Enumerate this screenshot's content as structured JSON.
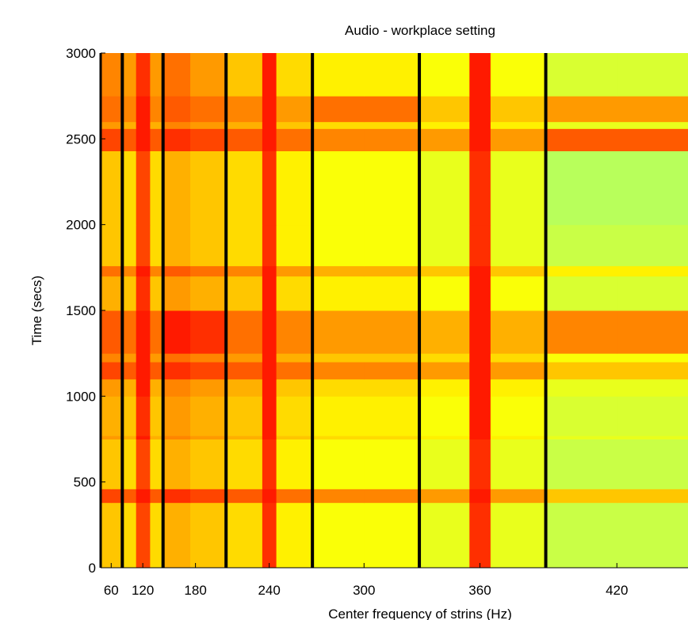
{
  "chart_data": {
    "type": "heatmap",
    "title": "Audio - workplace setting",
    "xlabel": "Center frequency of strins (Hz)",
    "ylabel": "Time (secs)",
    "xscale": "square",
    "xlim": [
      0,
      448
    ],
    "xticks": [
      60,
      120,
      180,
      240,
      300,
      360,
      420
    ],
    "ylim": [
      0,
      3000
    ],
    "yticks": [
      0,
      500,
      1000,
      1500,
      2000,
      2500,
      3000
    ],
    "xbins": [
      0,
      60,
      86,
      110,
      130,
      146,
      175,
      207,
      235,
      245,
      269,
      300,
      330,
      355,
      365,
      390,
      420,
      448
    ],
    "ybins": [
      0,
      380,
      460,
      750,
      770,
      1000,
      1100,
      1200,
      1250,
      1500,
      1700,
      1760,
      2000,
      2430,
      2560,
      2600,
      2750,
      3000
    ],
    "z": [
      [
        60,
        60,
        55,
        90,
        55,
        65,
        60,
        55,
        95,
        50,
        45,
        45,
        40,
        95,
        40,
        30,
        30
      ],
      [
        90,
        90,
        85,
        100,
        85,
        95,
        90,
        85,
        100,
        80,
        75,
        75,
        70,
        100,
        70,
        60,
        60
      ],
      [
        60,
        60,
        55,
        90,
        55,
        65,
        60,
        55,
        95,
        50,
        45,
        45,
        40,
        95,
        40,
        30,
        30
      ],
      [
        70,
        70,
        65,
        100,
        65,
        75,
        70,
        65,
        100,
        60,
        55,
        55,
        50,
        100,
        50,
        40,
        40
      ],
      [
        65,
        65,
        60,
        95,
        60,
        70,
        65,
        60,
        100,
        55,
        50,
        50,
        45,
        100,
        45,
        35,
        35
      ],
      [
        70,
        70,
        65,
        100,
        65,
        75,
        70,
        65,
        100,
        60,
        55,
        55,
        50,
        100,
        50,
        40,
        40
      ],
      [
        90,
        90,
        85,
        100,
        85,
        95,
        90,
        85,
        100,
        80,
        75,
        75,
        70,
        100,
        70,
        60,
        60
      ],
      [
        75,
        75,
        70,
        100,
        70,
        80,
        75,
        70,
        100,
        65,
        60,
        60,
        55,
        100,
        55,
        45,
        45
      ],
      [
        85,
        85,
        80,
        100,
        80,
        100,
        95,
        80,
        100,
        75,
        70,
        70,
        65,
        100,
        65,
        75,
        75
      ],
      [
        65,
        65,
        60,
        95,
        60,
        70,
        65,
        60,
        100,
        55,
        50,
        50,
        45,
        100,
        45,
        35,
        35
      ],
      [
        80,
        80,
        75,
        100,
        75,
        85,
        80,
        75,
        100,
        70,
        65,
        65,
        60,
        100,
        60,
        50,
        50
      ],
      [
        60,
        60,
        55,
        90,
        55,
        65,
        60,
        55,
        95,
        50,
        45,
        45,
        40,
        95,
        40,
        30,
        30
      ],
      [
        60,
        60,
        55,
        90,
        55,
        65,
        60,
        55,
        95,
        50,
        45,
        45,
        40,
        95,
        40,
        25,
        25
      ],
      [
        90,
        90,
        85,
        100,
        85,
        95,
        90,
        85,
        100,
        80,
        75,
        75,
        70,
        100,
        70,
        85,
        85
      ],
      [
        70,
        70,
        65,
        100,
        65,
        75,
        70,
        65,
        100,
        60,
        55,
        55,
        50,
        100,
        50,
        40,
        40
      ],
      [
        80,
        80,
        75,
        100,
        75,
        85,
        80,
        75,
        100,
        70,
        80,
        80,
        60,
        100,
        60,
        70,
        70
      ],
      [
        75,
        75,
        70,
        95,
        70,
        80,
        70,
        60,
        100,
        55,
        50,
        50,
        45,
        100,
        45,
        35,
        35
      ]
    ],
    "clim": [
      20,
      100
    ],
    "colormap": [
      "#a8ff70",
      "#ffff00",
      "#ff8c00",
      "#ff1a00"
    ],
    "vlines": [
      86,
      146,
      207,
      269,
      330,
      390
    ],
    "vline_color": "#000000"
  }
}
